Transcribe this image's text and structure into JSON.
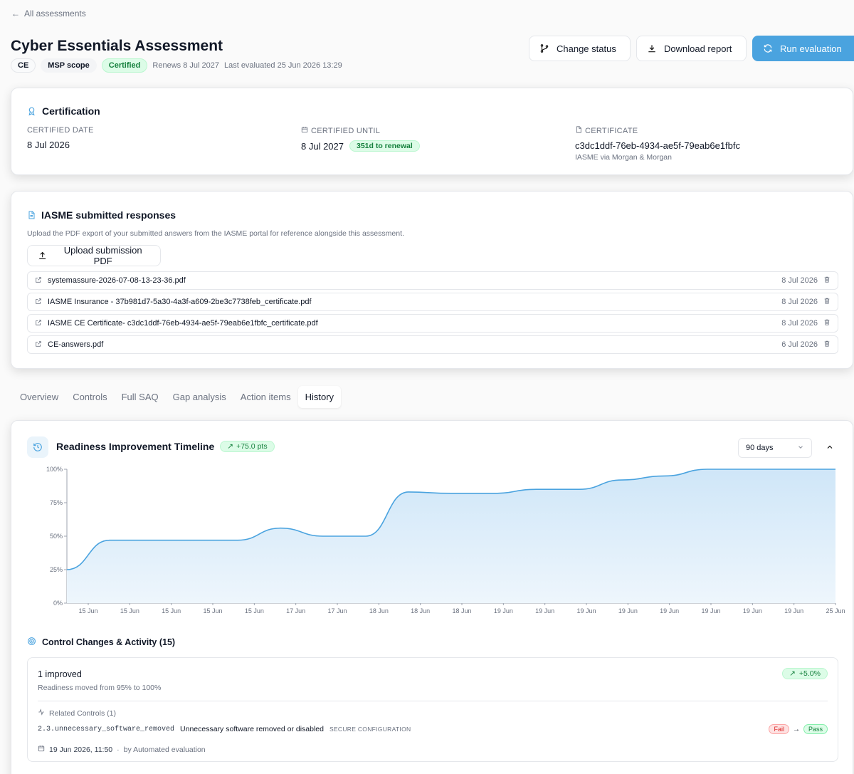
{
  "back_link": "All assessments",
  "title": "Cyber Essentials Assessment",
  "badges": {
    "ce": "CE",
    "scope": "MSP scope",
    "status": "Certified"
  },
  "meta": {
    "renews": "Renews 8 Jul 2027",
    "last_evaluated": "Last evaluated 25 Jun 2026 13:29"
  },
  "actions": {
    "change_status": "Change status",
    "download_report": "Download report",
    "run_evaluation": "Run evaluation"
  },
  "certification": {
    "title": "Certification",
    "certified_date_label": "CERTIFIED DATE",
    "certified_date": "8 Jul 2026",
    "certified_until_label": "CERTIFIED UNTIL",
    "certified_until": "8 Jul 2027",
    "renewal_tag": "351d to renewal",
    "certificate_label": "CERTIFICATE",
    "certificate_id": "c3dc1ddf-76eb-4934-ae5f-79eab6e1fbfc",
    "certificate_issuer": "IASME via Morgan & Morgan"
  },
  "iasme": {
    "title": "IASME submitted responses",
    "description": "Upload the PDF export of your submitted answers from the IASME portal for reference alongside this assessment.",
    "upload_label": "Upload submission PDF",
    "files": [
      {
        "name": "systemassure-2026-07-08-13-23-36.pdf",
        "date": "8 Jul 2026"
      },
      {
        "name": "IASME Insurance - 37b981d7-5a30-4a3f-a609-2be3c7738feb_certificate.pdf",
        "date": "8 Jul 2026"
      },
      {
        "name": "IASME CE Certificate- c3dc1ddf-76eb-4934-ae5f-79eab6e1fbfc_certificate.pdf",
        "date": "8 Jul 2026"
      },
      {
        "name": "CE-answers.pdf",
        "date": "6 Jul 2026"
      }
    ]
  },
  "tabs": [
    "Overview",
    "Controls",
    "Full SAQ",
    "Gap analysis",
    "Action items",
    "History"
  ],
  "active_tab": "History",
  "timeline": {
    "title": "Readiness Improvement Timeline",
    "delta": "+75.0 pts",
    "range": "90 days"
  },
  "chart_data": {
    "type": "area",
    "y_ticks": [
      "100%",
      "75%",
      "50%",
      "25%",
      "0%"
    ],
    "ylim": [
      0,
      100
    ],
    "x": [
      "15 Jun",
      "15 Jun",
      "15 Jun",
      "15 Jun",
      "15 Jun",
      "17 Jun",
      "17 Jun",
      "18 Jun",
      "18 Jun",
      "18 Jun",
      "19 Jun",
      "19 Jun",
      "19 Jun",
      "19 Jun",
      "19 Jun",
      "19 Jun",
      "19 Jun",
      "19 Jun",
      "25 Jun"
    ],
    "values": [
      25,
      47,
      47,
      47,
      47,
      56,
      50,
      50,
      83,
      82,
      82,
      85,
      85,
      92,
      95,
      100,
      100,
      100,
      100
    ]
  },
  "activity": {
    "title": "Control Changes & Activity (15)",
    "items": [
      {
        "headline": "1 improved",
        "detail": "Readiness moved from 95% to 100%",
        "delta": "+5.0%",
        "related_label": "Related Controls (1)",
        "control_id": "2.3.unnecessary_software_removed",
        "control_name": "Unnecessary software removed or disabled",
        "control_category": "SECURE CONFIGURATION",
        "from": "Fail",
        "arrow": "→",
        "to": "Pass",
        "timestamp": "19 Jun 2026, 11:50",
        "by": "by Automated evaluation"
      }
    ]
  },
  "colors": {
    "accent": "#4aa3df",
    "green": "#15803d",
    "line": "#4aa3df",
    "fill": "#dbeafe"
  }
}
